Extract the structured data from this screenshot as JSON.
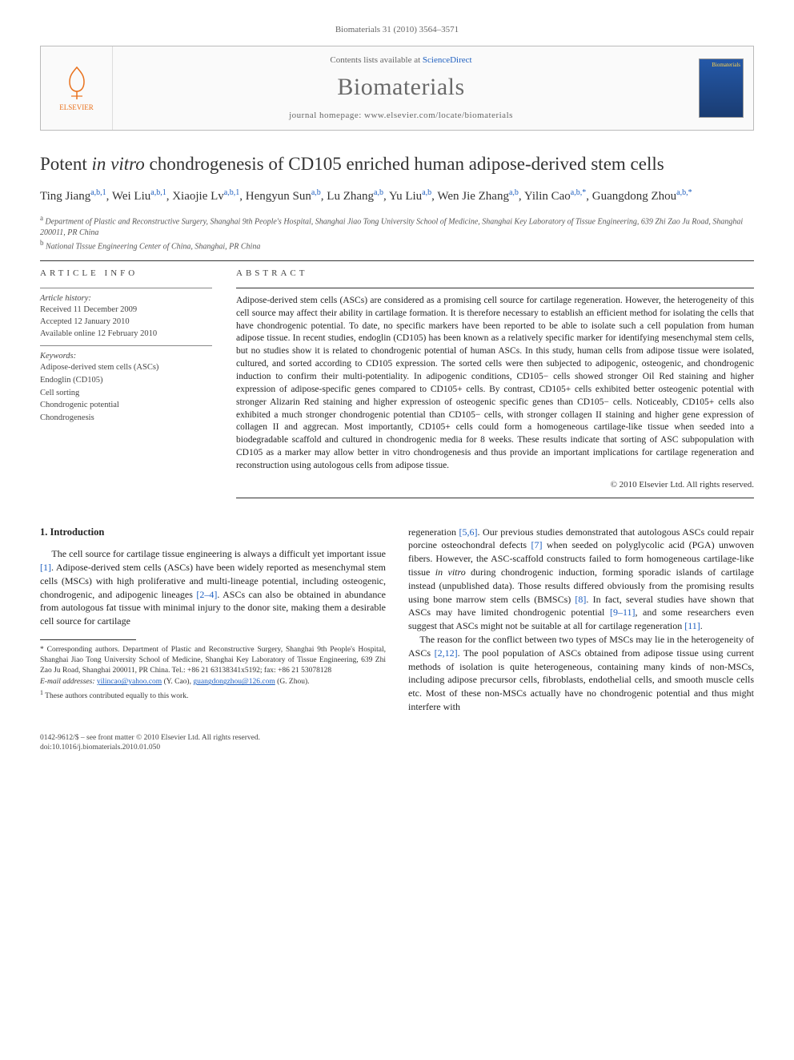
{
  "running_head": "Biomaterials 31 (2010) 3564–3571",
  "masthead": {
    "contents_prefix": "Contents lists available at ",
    "contents_link": "ScienceDirect",
    "journal": "Biomaterials",
    "homepage_label": "journal homepage: www.elsevier.com/locate/biomaterials",
    "publisher_logo_label": "ELSEVIER",
    "cover_label": "Biomaterials"
  },
  "article": {
    "title_pre": "Potent ",
    "title_ital": "in vitro",
    "title_post": " chondrogenesis of CD105 enriched human adipose-derived stem cells",
    "authors_html": "Ting Jiang<sup>a,b,1</sup>, Wei Liu<sup>a,b,1</sup>, Xiaojie Lv<sup>a,b,1</sup>, Hengyun Sun<sup>a,b</sup>, Lu Zhang<sup>a,b</sup>, Yu Liu<sup>a,b</sup>, Wen Jie Zhang<sup>a,b</sup>, Yilin Cao<sup>a,b,*</sup>, Guangdong Zhou<sup>a,b,*</sup>",
    "affiliations": [
      {
        "marker": "a",
        "text": "Department of Plastic and Reconstructive Surgery, Shanghai 9th People's Hospital, Shanghai Jiao Tong University School of Medicine, Shanghai Key Laboratory of Tissue Engineering, 639 Zhi Zao Ju Road, Shanghai 200011, PR China"
      },
      {
        "marker": "b",
        "text": "National Tissue Engineering Center of China, Shanghai, PR China"
      }
    ]
  },
  "info": {
    "heading": "ARTICLE INFO",
    "history_label": "Article history:",
    "history": [
      "Received 11 December 2009",
      "Accepted 12 January 2010",
      "Available online 12 February 2010"
    ],
    "keywords_label": "Keywords:",
    "keywords": [
      "Adipose-derived stem cells (ASCs)",
      "Endoglin (CD105)",
      "Cell sorting",
      "Chondrogenic potential",
      "Chondrogenesis"
    ]
  },
  "abstract": {
    "heading": "ABSTRACT",
    "text": "Adipose-derived stem cells (ASCs) are considered as a promising cell source for cartilage regeneration. However, the heterogeneity of this cell source may affect their ability in cartilage formation. It is therefore necessary to establish an efficient method for isolating the cells that have chondrogenic potential. To date, no specific markers have been reported to be able to isolate such a cell population from human adipose tissue. In recent studies, endoglin (CD105) has been known as a relatively specific marker for identifying mesenchymal stem cells, but no studies show it is related to chondrogenic potential of human ASCs. In this study, human cells from adipose tissue were isolated, cultured, and sorted according to CD105 expression. The sorted cells were then subjected to adipogenic, osteogenic, and chondrogenic induction to confirm their multi-potentiality. In adipogenic conditions, CD105− cells showed stronger Oil Red staining and higher expression of adipose-specific genes compared to CD105+ cells. By contrast, CD105+ cells exhibited better osteogenic potential with stronger Alizarin Red staining and higher expression of osteogenic specific genes than CD105− cells. Noticeably, CD105+ cells also exhibited a much stronger chondrogenic potential than CD105− cells, with stronger collagen II staining and higher gene expression of collagen II and aggrecan. Most importantly, CD105+ cells could form a homogeneous cartilage-like tissue when seeded into a biodegradable scaffold and cultured in chondrogenic media for 8 weeks. These results indicate that sorting of ASC subpopulation with CD105 as a marker may allow better in vitro chondrogenesis and thus provide an important implications for cartilage regeneration and reconstruction using autologous cells from adipose tissue.",
    "copyright": "© 2010 Elsevier Ltd. All rights reserved."
  },
  "body": {
    "intro_heading": "1. Introduction",
    "p1_a": "The cell source for cartilage tissue engineering is always a difficult yet important issue ",
    "p1_cite1": "[1]",
    "p1_b": ". Adipose-derived stem cells (ASCs) have been widely reported as mesenchymal stem cells (MSCs) with high proliferative and multi-lineage potential, including osteogenic, chondrogenic, and adipogenic lineages ",
    "p1_cite2": "[2–4]",
    "p1_c": ". ASCs can also be obtained in abundance from autologous fat tissue with minimal injury to the donor site, making them a desirable cell source for cartilage",
    "p2_a": "regeneration ",
    "p2_cite1": "[5,6]",
    "p2_b": ". Our previous studies demonstrated that autologous ASCs could repair porcine osteochondral defects ",
    "p2_cite2": "[7]",
    "p2_c": " when seeded on polyglycolic acid (PGA) unwoven fibers. However, the ASC-scaffold constructs failed to form homogeneous cartilage-like tissue ",
    "p2_ital": "in vitro",
    "p2_d": " during chondrogenic induction, forming sporadic islands of cartilage instead (unpublished data). Those results differed obviously from the promising results using bone marrow stem cells (BMSCs) ",
    "p2_cite3": "[8]",
    "p2_e": ". In fact, several studies have shown that ASCs may have limited chondrogenic potential ",
    "p2_cite4": "[9–11]",
    "p2_f": ", and some researchers even suggest that ASCs might not be suitable at all for cartilage regeneration ",
    "p2_cite5": "[11]",
    "p2_g": ".",
    "p3_a": "The reason for the conflict between two types of MSCs may lie in the heterogeneity of ASCs ",
    "p3_cite1": "[2,12]",
    "p3_b": ". The pool population of ASCs obtained from adipose tissue using current methods of isolation is quite heterogeneous, containing many kinds of non-MSCs, including adipose precursor cells, fibroblasts, endothelial cells, and smooth muscle cells etc. Most of these non-MSCs actually have no chondrogenic potential and thus might interfere with"
  },
  "footnotes": {
    "corr": "* Corresponding authors. Department of Plastic and Reconstructive Surgery, Shanghai 9th People's Hospital, Shanghai Jiao Tong University School of Medicine, Shanghai Key Laboratory of Tissue Engineering, 639 Zhi Zao Ju Road, Shanghai 200011, PR China. Tel.: +86 21 63138341x5192; fax: +86 21 53078128",
    "email_label": "E-mail addresses:",
    "email1": "yilincao@yahoo.com",
    "email1_who": " (Y. Cao), ",
    "email2": "guangdongzhou@126.com",
    "email2_who": " (G. Zhou).",
    "equal": "These authors contributed equally to this work."
  },
  "footer": {
    "line1": "0142-9612/$ – see front matter © 2010 Elsevier Ltd. All rights reserved.",
    "line2": "doi:10.1016/j.biomaterials.2010.01.050"
  },
  "colors": {
    "link": "#2060c0",
    "elsevier_orange": "#e9711c",
    "rule": "#333333"
  }
}
